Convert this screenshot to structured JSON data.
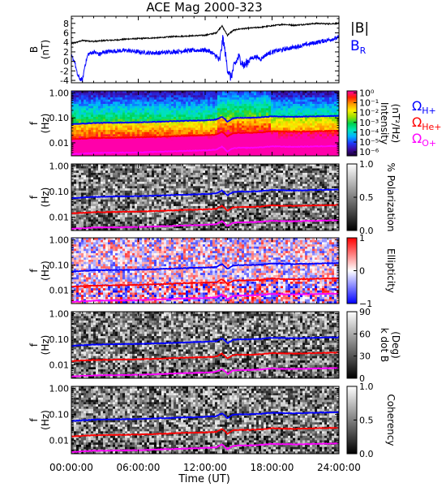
{
  "chart_data": {
    "type": "spectrogram",
    "title": "ACE Mag 2000-323",
    "xlabel": "Time (UT)",
    "x_ticks": [
      "00:00:00",
      "06:00:00",
      "12:00:00",
      "18:00:00",
      "24:00:00"
    ],
    "x_range_hours": [
      0,
      24
    ],
    "panels": [
      {
        "type": "line",
        "ylabel_main": "B",
        "ylabel_unit": "(nT)",
        "ylim": [
          -4.5,
          9.5
        ],
        "y_ticks": [
          "-4",
          "-2",
          "0",
          "2",
          "4",
          "6",
          "8"
        ],
        "y_tick_values": [
          -4,
          -2,
          0,
          2,
          4,
          6,
          8
        ],
        "series": [
          {
            "name": "|B|",
            "color": "#000000",
            "hours": [
              0,
              1,
              2,
              3,
              4,
              5,
              6,
              7,
              8,
              9,
              10,
              11,
              12,
              13,
              13.5,
              14,
              14.5,
              15,
              16,
              17,
              18,
              19,
              20,
              21,
              22,
              23,
              24
            ],
            "values": [
              3.7,
              4.4,
              4.2,
              4.4,
              4.5,
              4.7,
              4.8,
              4.9,
              5.0,
              5.2,
              5.3,
              5.4,
              5.5,
              6.0,
              7.5,
              5.5,
              6.5,
              6.8,
              7.0,
              7.2,
              7.5,
              7.8,
              7.6,
              7.8,
              8.0,
              7.9,
              8.0
            ]
          },
          {
            "name": "B_R",
            "color": "#0000ff",
            "hours": [
              0,
              0.3,
              0.5,
              0.7,
              1,
              1.2,
              1.5,
              2,
              2.5,
              3,
              4,
              5,
              6,
              7,
              8,
              9,
              10,
              11,
              12,
              12.5,
              13,
              13.3,
              13.6,
              14,
              14.3,
              14.6,
              15,
              15.5,
              16,
              16.5,
              17,
              17.5,
              18,
              19,
              20,
              21,
              22,
              23,
              24
            ],
            "values": [
              1.0,
              0.0,
              -2.5,
              -3.5,
              -4.0,
              -1.0,
              1.5,
              2.0,
              1.5,
              2.0,
              2.2,
              2.3,
              2.0,
              1.8,
              1.8,
              2.0,
              2.2,
              2.3,
              2.4,
              2.0,
              1.0,
              0.0,
              5.0,
              -1.5,
              -3.5,
              -1.0,
              1.0,
              -1.0,
              0.5,
              1.0,
              0.5,
              1.5,
              2.0,
              2.5,
              3.0,
              3.5,
              4.0,
              4.5,
              5.0
            ]
          }
        ]
      },
      {
        "type": "heatmap",
        "ylabel_main": "f",
        "ylabel_unit": "(Hz)",
        "colorbar_label": "Intensity",
        "colorbar_unit": "(nT²/Hz)",
        "colorbar_ticks": [
          "10⁰",
          "10⁻¹",
          "10⁻²",
          "10⁻³",
          "10⁻⁴",
          "10⁻⁵",
          "10⁻⁶"
        ],
        "colorbar_tick_exponents": [
          0,
          -1,
          -2,
          -3,
          -4,
          -5,
          -6
        ],
        "colorbar_range_exponent": [
          -6.4,
          0.2
        ],
        "colorbar_colors": [
          "#1a0033",
          "#3b0aa0",
          "#1d3cff",
          "#00b4ff",
          "#00e6b4",
          "#00d24a",
          "#9be000",
          "#ffee00",
          "#ff9a00",
          "#ff2200",
          "#ff00aa"
        ]
      },
      {
        "type": "heatmap",
        "ylabel_main": "f",
        "ylabel_unit": "(Hz)",
        "colorbar_label": "% Polarization",
        "colorbar_ticks": [
          "1.0",
          "0.5",
          "0.0"
        ],
        "colorbar_tick_values": [
          1.0,
          0.5,
          0.0
        ],
        "colorbar_range": [
          0,
          1
        ],
        "colorbar_colors": [
          "#000000",
          "#ffffff"
        ]
      },
      {
        "type": "heatmap",
        "ylabel_main": "f",
        "ylabel_unit": "(Hz)",
        "colorbar_label": "Ellipticity",
        "colorbar_ticks": [
          "1",
          "0",
          "−1"
        ],
        "colorbar_tick_values": [
          1,
          0,
          -1
        ],
        "colorbar_range": [
          -1,
          1
        ],
        "colorbar_colors": [
          "#0000ff",
          "#ffffff",
          "#ff0000"
        ]
      },
      {
        "type": "heatmap",
        "ylabel_main": "f",
        "ylabel_unit": "(Hz)",
        "colorbar_label": "k dot B",
        "colorbar_unit": "(Deg)",
        "colorbar_ticks": [
          "90",
          "60",
          "30",
          "0"
        ],
        "colorbar_tick_values": [
          90,
          60,
          30,
          0
        ],
        "colorbar_range": [
          0,
          90
        ],
        "colorbar_colors": [
          "#000000",
          "#ffffff"
        ]
      },
      {
        "type": "heatmap",
        "ylabel_main": "f",
        "ylabel_unit": "(Hz)",
        "colorbar_label": "Coherency",
        "colorbar_ticks": [
          "1.0",
          "0.5",
          "0.0"
        ],
        "colorbar_tick_values": [
          1.0,
          0.5,
          0.0
        ],
        "colorbar_range": [
          0,
          1
        ],
        "colorbar_colors": [
          "#000000",
          "#ffffff"
        ]
      }
    ],
    "freq_axis": {
      "scale": "log",
      "range_hz": [
        0.003,
        1.2
      ],
      "ticks": [
        "1.00",
        "0.10",
        "0.01"
      ],
      "tick_values": [
        1.0,
        0.1,
        0.01
      ]
    },
    "gyro_lines": [
      {
        "name_main": "Ω",
        "name_sub": "H+",
        "color": "#0000ff",
        "hours": [
          0,
          2,
          4,
          6,
          8,
          10,
          12,
          13,
          13.5,
          14,
          14.5,
          15,
          16,
          17,
          18,
          19,
          20,
          22,
          24
        ],
        "hz": [
          0.055,
          0.062,
          0.064,
          0.066,
          0.07,
          0.075,
          0.08,
          0.085,
          0.11,
          0.07,
          0.095,
          0.1,
          0.1,
          0.105,
          0.115,
          0.112,
          0.11,
          0.115,
          0.12
        ]
      },
      {
        "name_main": "Ω",
        "name_sub": "He+",
        "color": "#ff0000",
        "hours": [
          0,
          2,
          4,
          6,
          8,
          10,
          12,
          13,
          13.5,
          14,
          14.5,
          15,
          16,
          17,
          18,
          19,
          20,
          22,
          24
        ],
        "hz": [
          0.014,
          0.0155,
          0.016,
          0.0165,
          0.0175,
          0.019,
          0.02,
          0.021,
          0.0275,
          0.0175,
          0.024,
          0.025,
          0.025,
          0.026,
          0.029,
          0.028,
          0.0275,
          0.029,
          0.03
        ]
      },
      {
        "name_main": "Ω",
        "name_sub": "O+",
        "color": "#ff00ff",
        "hours": [
          0,
          2,
          4,
          6,
          8,
          10,
          12,
          13,
          13.5,
          14,
          14.5,
          15,
          16,
          17,
          18,
          19,
          20,
          22,
          24
        ],
        "hz": [
          0.0035,
          0.0039,
          0.004,
          0.0041,
          0.0044,
          0.0047,
          0.005,
          0.0053,
          0.0069,
          0.0044,
          0.006,
          0.0063,
          0.0063,
          0.0066,
          0.0072,
          0.007,
          0.0069,
          0.0072,
          0.0075
        ]
      }
    ]
  }
}
